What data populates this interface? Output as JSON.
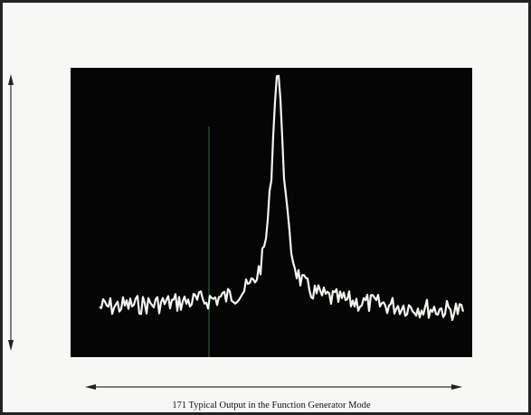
{
  "caption": "171 Typical Output in the Function Generator Mode"
}
